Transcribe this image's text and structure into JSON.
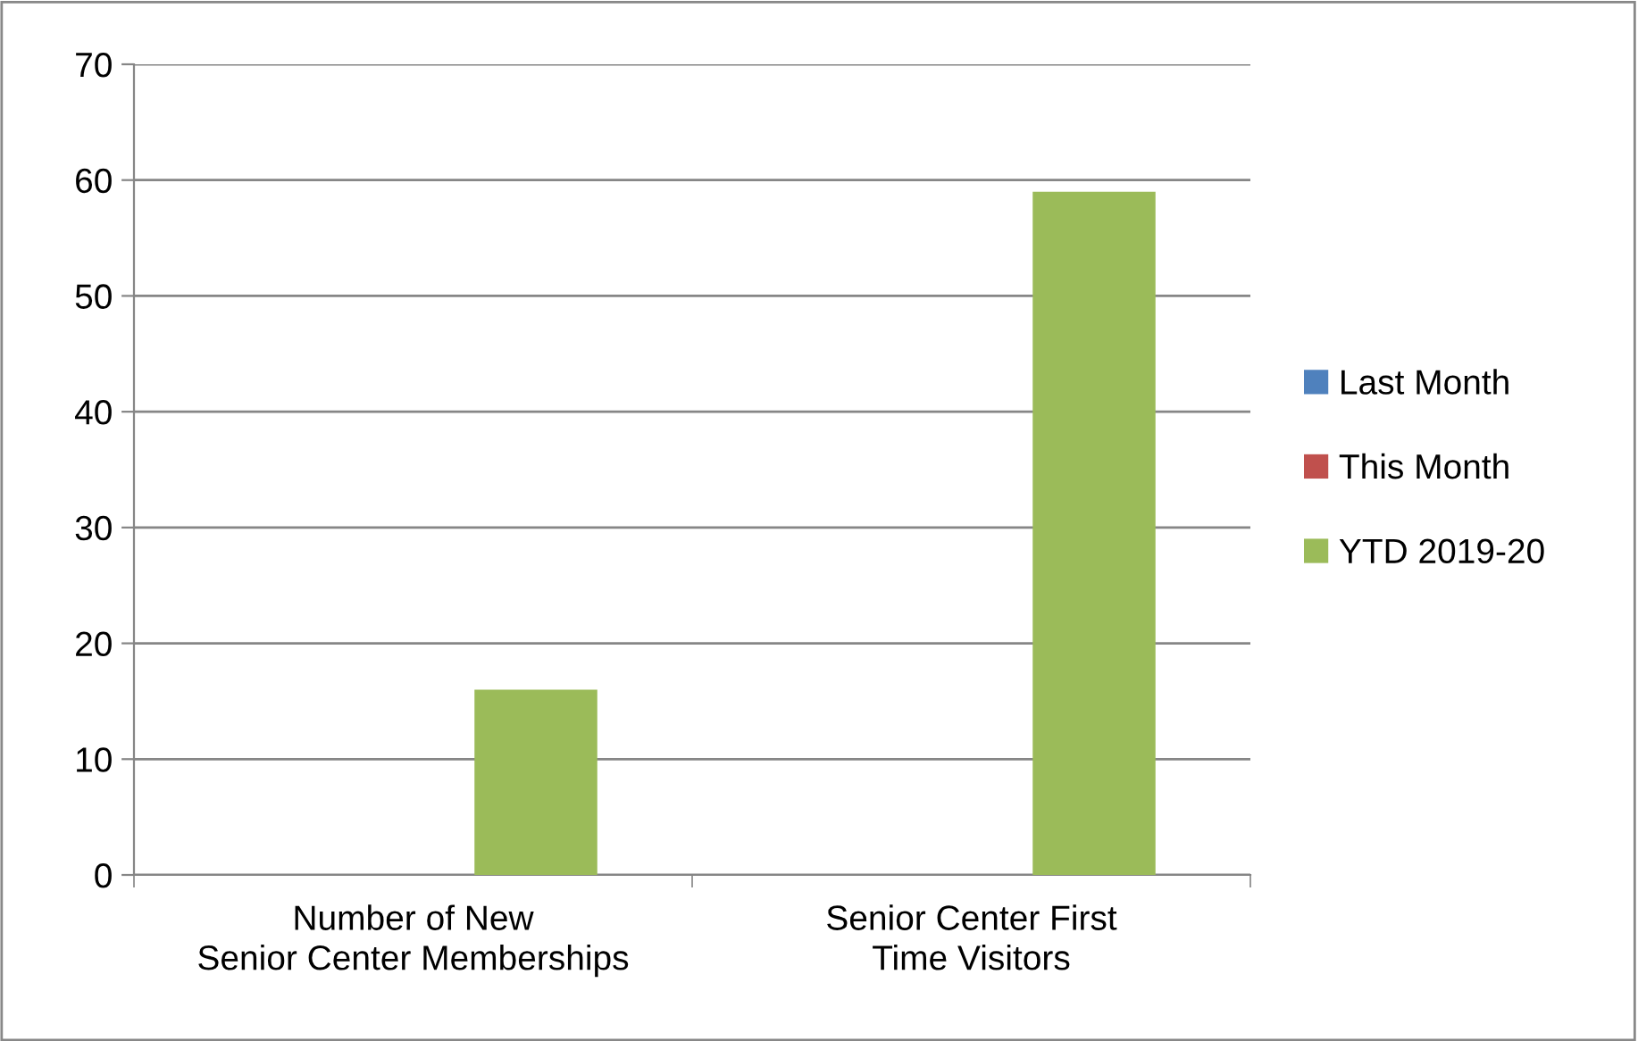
{
  "chart_data": {
    "type": "bar",
    "categories": [
      "Number of New Senior Center Memberships",
      "Senior Center First Time Visitors"
    ],
    "series": [
      {
        "name": "Last Month",
        "color": "#4f81bd",
        "values": [
          0,
          0
        ]
      },
      {
        "name": "This Month",
        "color": "#c0504d",
        "values": [
          0,
          0
        ]
      },
      {
        "name": "YTD 2019-20",
        "color": "#9bbb59",
        "values": [
          16,
          59
        ]
      }
    ],
    "ylim": [
      0,
      70
    ],
    "yticks": [
      0,
      10,
      20,
      30,
      40,
      50,
      60,
      70
    ],
    "grid": "y",
    "legend": "right"
  }
}
